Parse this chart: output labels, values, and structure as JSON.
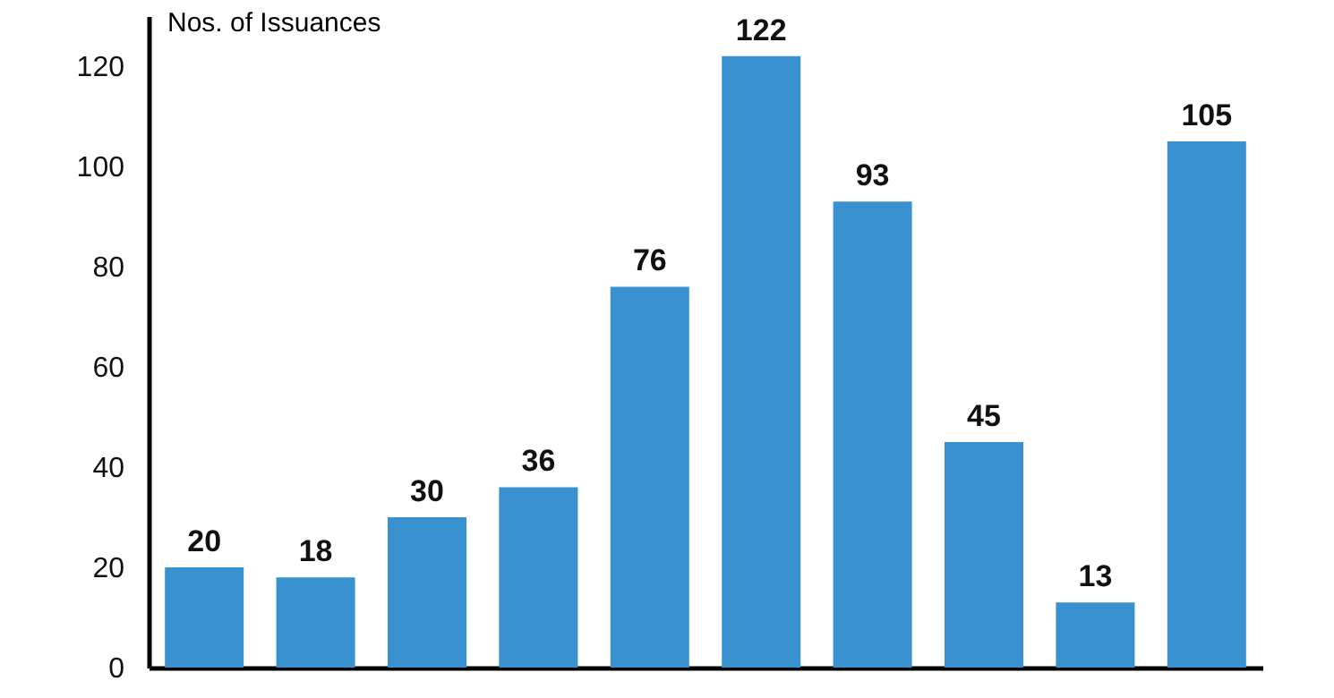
{
  "chart_data": {
    "type": "bar",
    "ylabel": "Nos. of Issuances",
    "categories": [
      null,
      null,
      null,
      null,
      null,
      null,
      null,
      null,
      null,
      null
    ],
    "values": [
      20,
      18,
      30,
      36,
      76,
      122,
      93,
      45,
      13,
      105
    ],
    "color": "#3a91cf",
    "ylim": [
      0,
      130
    ],
    "yticks": [
      0,
      20,
      40,
      60,
      80,
      100,
      120
    ],
    "grid": false,
    "data_labels": true
  }
}
